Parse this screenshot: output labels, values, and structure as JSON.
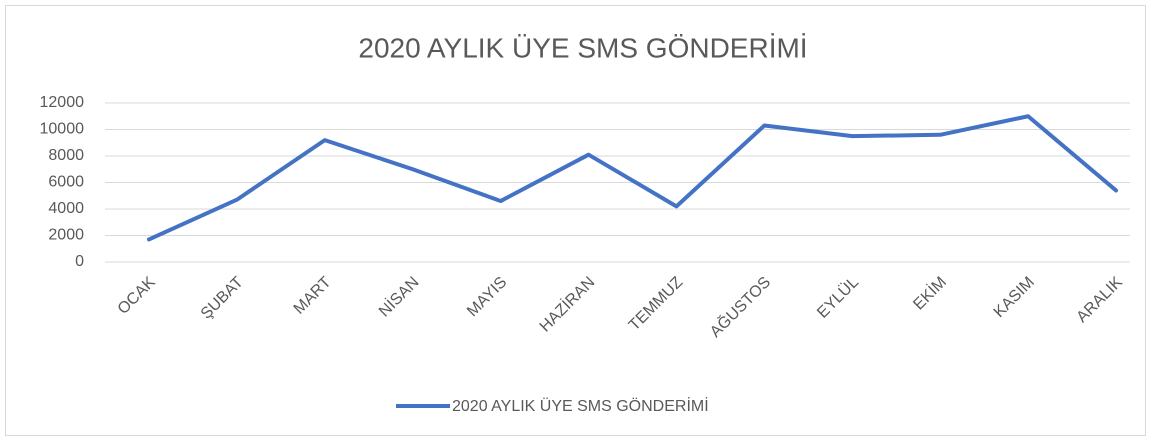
{
  "chart_data": {
    "type": "line",
    "title": "2020 AYLIK ÜYE SMS GÖNDERİMİ",
    "categories": [
      "OCAK",
      "ŞUBAT",
      "MART",
      "NİSAN",
      "MAYIS",
      "HAZİRAN",
      "TEMMUZ",
      "AĞUSTOS",
      "EYLÜL",
      "EKİM",
      "KASIM",
      "ARALIK"
    ],
    "series": [
      {
        "name": "2020 AYLIK ÜYE SMS GÖNDERİMİ",
        "color": "#4472c4",
        "values": [
          1700,
          4700,
          9200,
          7000,
          4600,
          8100,
          4200,
          10300,
          9500,
          9600,
          11000,
          5400
        ]
      }
    ],
    "ylim": [
      0,
      12000
    ],
    "yticks": [
      0,
      2000,
      4000,
      6000,
      8000,
      10000,
      12000
    ],
    "grid": true,
    "legend": "bottom"
  }
}
